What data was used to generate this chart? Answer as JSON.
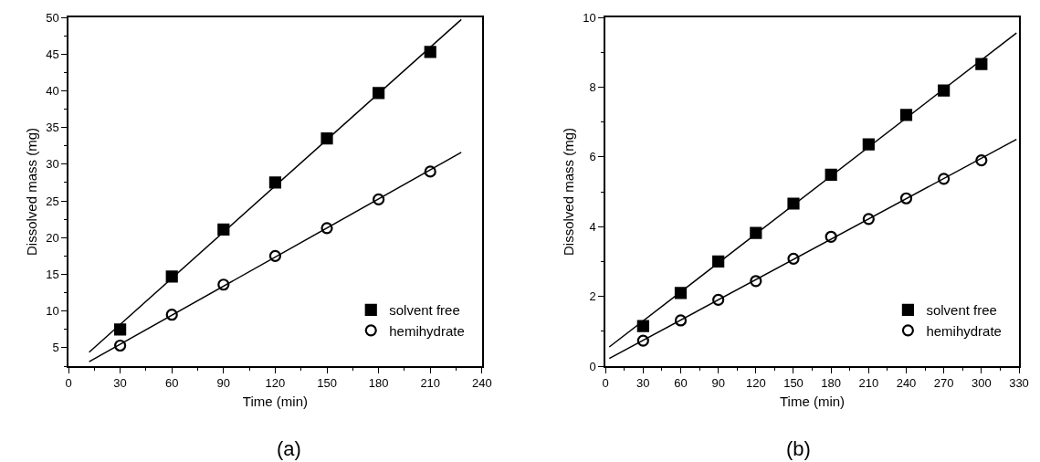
{
  "chart_data": [
    {
      "type": "scatter",
      "xlabel": "Time (min)",
      "ylabel": "Dissolved mass (mg)",
      "annotations": [
        "(a)"
      ],
      "x": [
        30,
        60,
        90,
        120,
        150,
        180,
        210
      ],
      "series": [
        {
          "name": "solvent free",
          "color": "#000000",
          "marker": "square",
          "values": [
            7.5,
            14.7,
            21.1,
            27.5,
            33.5,
            39.7,
            45.3
          ]
        },
        {
          "name": "hemihydrate",
          "color": "#000000",
          "marker": "circle",
          "values": [
            5.3,
            9.5,
            13.6,
            17.5,
            21.3,
            25.2,
            29.0
          ]
        },
        {
          "type": "line",
          "color": "#000000",
          "x": [
            12,
            228
          ],
          "values": [
            4.4,
            49.7
          ]
        },
        {
          "type": "line",
          "color": "#000000",
          "x": [
            12,
            228
          ],
          "values": [
            3.1,
            31.6
          ]
        }
      ],
      "xlim": [
        0,
        240
      ],
      "xticks": [
        0,
        30,
        60,
        90,
        120,
        150,
        180,
        210,
        240
      ],
      "ylim": [
        2.5,
        50
      ],
      "yticks": [
        5,
        10,
        15,
        20,
        25,
        30,
        35,
        40,
        45,
        50
      ],
      "legend": "bottom right"
    },
    {
      "type": "scatter",
      "xlabel": "Time (min)",
      "ylabel": "Dissolved mass (mg)",
      "annotations": [
        "(b)"
      ],
      "x": [
        30,
        60,
        90,
        120,
        150,
        180,
        210,
        240,
        270,
        300
      ],
      "series": [
        {
          "name": "solvent free",
          "color": "#000000",
          "marker": "square",
          "values": [
            1.15,
            2.1,
            3.0,
            3.82,
            4.66,
            5.49,
            6.36,
            7.2,
            7.9,
            8.66
          ]
        },
        {
          "name": "hemihydrate",
          "color": "#000000",
          "marker": "circle",
          "values": [
            0.73,
            1.31,
            1.9,
            2.44,
            3.08,
            3.71,
            4.22,
            4.81,
            5.37,
            5.9
          ]
        },
        {
          "type": "line",
          "color": "#000000",
          "x": [
            3,
            328
          ],
          "values": [
            0.55,
            9.55
          ]
        },
        {
          "type": "line",
          "color": "#000000",
          "x": [
            3,
            328
          ],
          "values": [
            0.22,
            6.5
          ]
        }
      ],
      "xlim": [
        0,
        330
      ],
      "xticks": [
        0,
        30,
        60,
        90,
        120,
        150,
        180,
        210,
        240,
        270,
        300,
        330
      ],
      "ylim": [
        0,
        10
      ],
      "yticks": [
        0,
        2,
        4,
        6,
        8,
        10
      ],
      "legend": "bottom right"
    }
  ]
}
